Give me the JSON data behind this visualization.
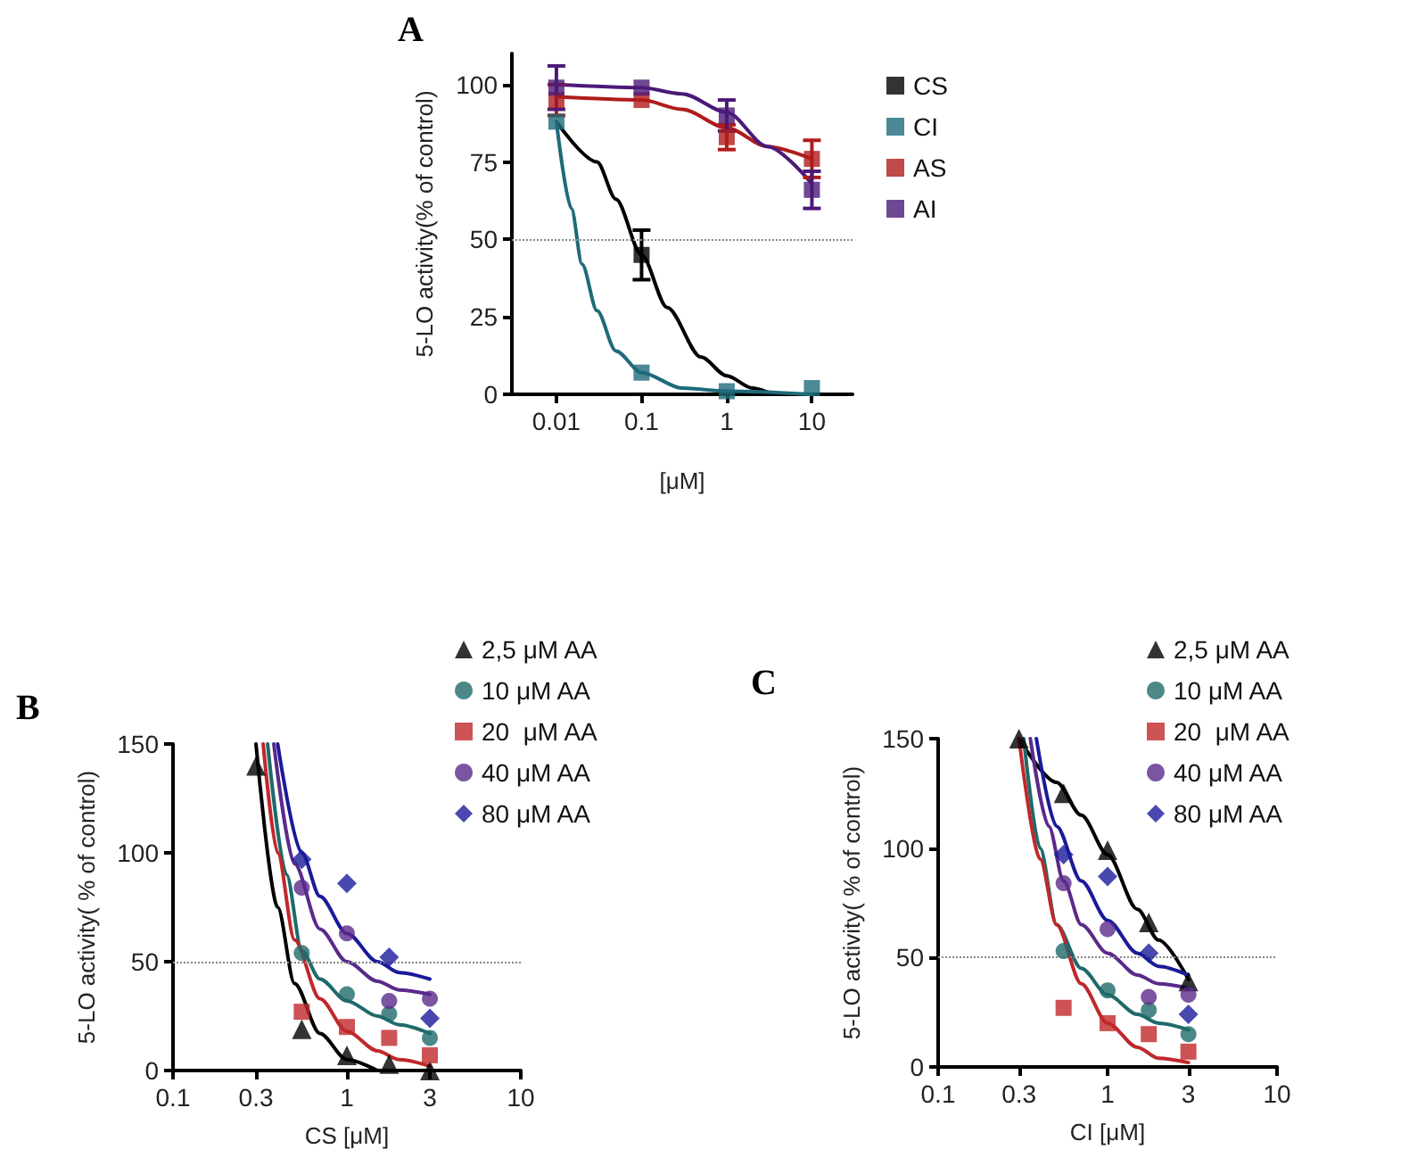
{
  "chart_data": [
    {
      "type": "scatter",
      "title": "A",
      "xlabel": "[μM]",
      "ylabel": "5-LO activity(% of control)",
      "log": "x",
      "xlim": [
        0.003,
        30
      ],
      "xticks": [
        0.01,
        0.1,
        1,
        10
      ],
      "ylim": [
        0,
        110
      ],
      "yticks": [
        0,
        25,
        50,
        75,
        100
      ],
      "grid": false,
      "legend": "right",
      "ref_lines": [
        {
          "axis": "y",
          "value": 50,
          "color": "#888888",
          "line_style": "dotted"
        }
      ],
      "series": [
        {
          "name": "CS",
          "marker": "square",
          "color": "#000000",
          "x": [
            0.1
          ],
          "values": [
            45
          ],
          "errors": [
            8
          ]
        },
        {
          "name": "CI",
          "marker": "square",
          "color": "#1f6a7a",
          "x": [
            0.01,
            0.1,
            1,
            10
          ],
          "values": [
            88,
            7,
            1,
            2
          ],
          "errors": [
            null,
            null,
            null,
            null
          ]
        },
        {
          "name": "AS",
          "marker": "square",
          "color": "#b01c1c",
          "x": [
            0.01,
            0.1,
            1,
            10
          ],
          "values": [
            95,
            95,
            83,
            76
          ],
          "errors": [
            5,
            null,
            4,
            6
          ]
        },
        {
          "name": "AI",
          "marker": "square",
          "color": "#4b1a78",
          "x": [
            0.01,
            0.1,
            1,
            10
          ],
          "values": [
            99,
            99,
            90,
            66
          ],
          "errors": [
            7,
            null,
            5,
            6
          ]
        },
        {
          "type": "line",
          "marker": "none",
          "color": "#000000",
          "x": [
            0.01,
            0.03,
            0.05,
            0.1,
            0.2,
            0.5,
            1,
            2,
            4,
            10
          ],
          "values": [
            88,
            75,
            63,
            45,
            28,
            12,
            6,
            2,
            0,
            0
          ]
        },
        {
          "type": "line",
          "marker": "none",
          "color": "#1f6a7a",
          "x": [
            0.01,
            0.015,
            0.02,
            0.03,
            0.05,
            0.1,
            0.3,
            1,
            10
          ],
          "values": [
            88,
            60,
            42,
            27,
            14,
            7,
            2,
            1,
            0
          ]
        },
        {
          "type": "line",
          "marker": "none",
          "color": "#b01c1c",
          "x": [
            0.01,
            0.1,
            0.3,
            1,
            3,
            10
          ],
          "values": [
            96,
            95,
            92,
            86,
            80,
            76
          ]
        },
        {
          "type": "line",
          "marker": "none",
          "color": "#4b1a78",
          "x": [
            0.01,
            0.1,
            0.3,
            1,
            3,
            10
          ],
          "values": [
            100,
            99,
            97,
            91,
            80,
            68
          ]
        }
      ]
    },
    {
      "type": "scatter",
      "title": "B",
      "xlabel": "CS [μM]",
      "ylabel": "5-LO activity( % of control)",
      "log": "x",
      "xlim": [
        0.1,
        10
      ],
      "xticks": [
        0.1,
        0.3,
        1,
        3,
        10
      ],
      "ylim": [
        0,
        150
      ],
      "yticks": [
        0,
        50,
        100,
        150
      ],
      "grid": false,
      "legend": "top right",
      "ref_lines": [
        {
          "axis": "y",
          "value": 50,
          "color": "#888888",
          "line_style": "dotted"
        }
      ],
      "series": [
        {
          "name": "2,5 μM AA",
          "marker": "triangle",
          "color": "#000000",
          "x": [
            0.3,
            0.55,
            1,
            1.75,
            3
          ],
          "values": [
            140,
            19,
            7,
            3,
            0
          ]
        },
        {
          "name": "10 μM AA",
          "marker": "circle",
          "color": "#1f6a6a",
          "x": [
            0.55,
            1,
            1.75,
            3
          ],
          "values": [
            54,
            35,
            26,
            15
          ]
        },
        {
          "name": "20  μM AA",
          "marker": "square",
          "color": "#c0282b",
          "x": [
            0.55,
            1,
            1.75,
            3
          ],
          "values": [
            27,
            20,
            15,
            7
          ]
        },
        {
          "name": "40 μM AA",
          "marker": "circle",
          "color": "#5a2a8a",
          "x": [
            0.55,
            1,
            1.75,
            3
          ],
          "values": [
            84,
            63,
            32,
            33
          ]
        },
        {
          "name": "80 μM AA",
          "marker": "diamond",
          "color": "#1a1a9a",
          "x": [
            0.55,
            1,
            1.75,
            3
          ],
          "values": [
            97,
            86,
            52,
            24
          ]
        },
        {
          "type": "line",
          "marker": "none",
          "color": "#000000",
          "x": [
            0.3,
            0.4,
            0.5,
            0.7,
            1,
            1.5
          ],
          "values": [
            150,
            75,
            40,
            17,
            5,
            0
          ]
        },
        {
          "type": "line",
          "marker": "none",
          "color": "#1f6a6a",
          "x": [
            0.35,
            0.45,
            0.55,
            0.7,
            1,
            1.5,
            2,
            3
          ],
          "values": [
            150,
            90,
            55,
            42,
            32,
            25,
            21,
            17
          ]
        },
        {
          "type": "line",
          "marker": "none",
          "color": "#c0282b",
          "x": [
            0.33,
            0.4,
            0.5,
            0.7,
            1,
            1.5,
            2,
            3
          ],
          "values": [
            150,
            100,
            60,
            33,
            18,
            9,
            5,
            2
          ]
        },
        {
          "type": "line",
          "marker": "none",
          "color": "#5a2a8a",
          "x": [
            0.38,
            0.5,
            0.7,
            1,
            1.5,
            2,
            3
          ],
          "values": [
            150,
            95,
            65,
            50,
            41,
            37,
            35
          ]
        },
        {
          "type": "line",
          "marker": "none",
          "color": "#1a1a9a",
          "x": [
            0.4,
            0.55,
            0.7,
            1,
            1.5,
            2,
            3
          ],
          "values": [
            150,
            100,
            80,
            63,
            50,
            45,
            42
          ]
        }
      ]
    },
    {
      "type": "scatter",
      "title": "C",
      "xlabel": "CI [μM]",
      "ylabel": "5-LO activity( % of control)",
      "log": "x",
      "xlim": [
        0.1,
        10
      ],
      "xticks": [
        0.1,
        0.3,
        1,
        3,
        10
      ],
      "ylim": [
        0,
        150
      ],
      "yticks": [
        0,
        50,
        100,
        150
      ],
      "grid": false,
      "legend": "top right",
      "ref_lines": [
        {
          "axis": "y",
          "value": 50,
          "color": "#888888",
          "line_style": "dotted"
        }
      ],
      "series": [
        {
          "name": "2,5 μM AA",
          "marker": "triangle",
          "color": "#000000",
          "x": [
            0.3,
            0.55,
            1,
            1.75,
            3
          ],
          "values": [
            150,
            125,
            99,
            66,
            39
          ]
        },
        {
          "name": "10 μM AA",
          "marker": "circle",
          "color": "#1f6a6a",
          "x": [
            0.55,
            1,
            1.75,
            3
          ],
          "values": [
            53,
            35,
            26,
            15
          ]
        },
        {
          "name": "20  μM AA",
          "marker": "square",
          "color": "#c0282b",
          "x": [
            0.55,
            1,
            1.75,
            3
          ],
          "values": [
            27,
            20,
            15,
            7
          ]
        },
        {
          "name": "40 μM AA",
          "marker": "circle",
          "color": "#5a2a8a",
          "x": [
            0.55,
            1,
            1.75,
            3
          ],
          "values": [
            84,
            63,
            32,
            33
          ]
        },
        {
          "name": "80 μM AA",
          "marker": "diamond",
          "color": "#1a1a9a",
          "x": [
            0.55,
            1,
            1.75,
            3
          ],
          "values": [
            97,
            87,
            52,
            24
          ]
        },
        {
          "type": "line",
          "marker": "none",
          "color": "#000000",
          "x": [
            0.3,
            0.5,
            0.7,
            1,
            1.5,
            2,
            3
          ],
          "values": [
            150,
            130,
            115,
            97,
            72,
            58,
            40
          ]
        },
        {
          "type": "line",
          "marker": "none",
          "color": "#1f6a6a",
          "x": [
            0.32,
            0.4,
            0.5,
            0.7,
            1,
            1.5,
            2,
            3
          ],
          "values": [
            150,
            100,
            65,
            45,
            33,
            24,
            20,
            17
          ]
        },
        {
          "type": "line",
          "marker": "none",
          "color": "#c0282b",
          "x": [
            0.3,
            0.4,
            0.5,
            0.7,
            1,
            1.5,
            2,
            3
          ],
          "values": [
            150,
            95,
            65,
            38,
            20,
            9,
            4,
            2
          ]
        },
        {
          "type": "line",
          "marker": "none",
          "color": "#5a2a8a",
          "x": [
            0.35,
            0.45,
            0.55,
            0.7,
            1,
            1.5,
            2,
            3
          ],
          "values": [
            150,
            110,
            85,
            65,
            52,
            42,
            38,
            36
          ]
        },
        {
          "type": "line",
          "marker": "none",
          "color": "#1a1a9a",
          "x": [
            0.38,
            0.5,
            0.7,
            1,
            1.5,
            2,
            3
          ],
          "values": [
            150,
            110,
            85,
            67,
            52,
            46,
            42
          ]
        }
      ]
    }
  ]
}
